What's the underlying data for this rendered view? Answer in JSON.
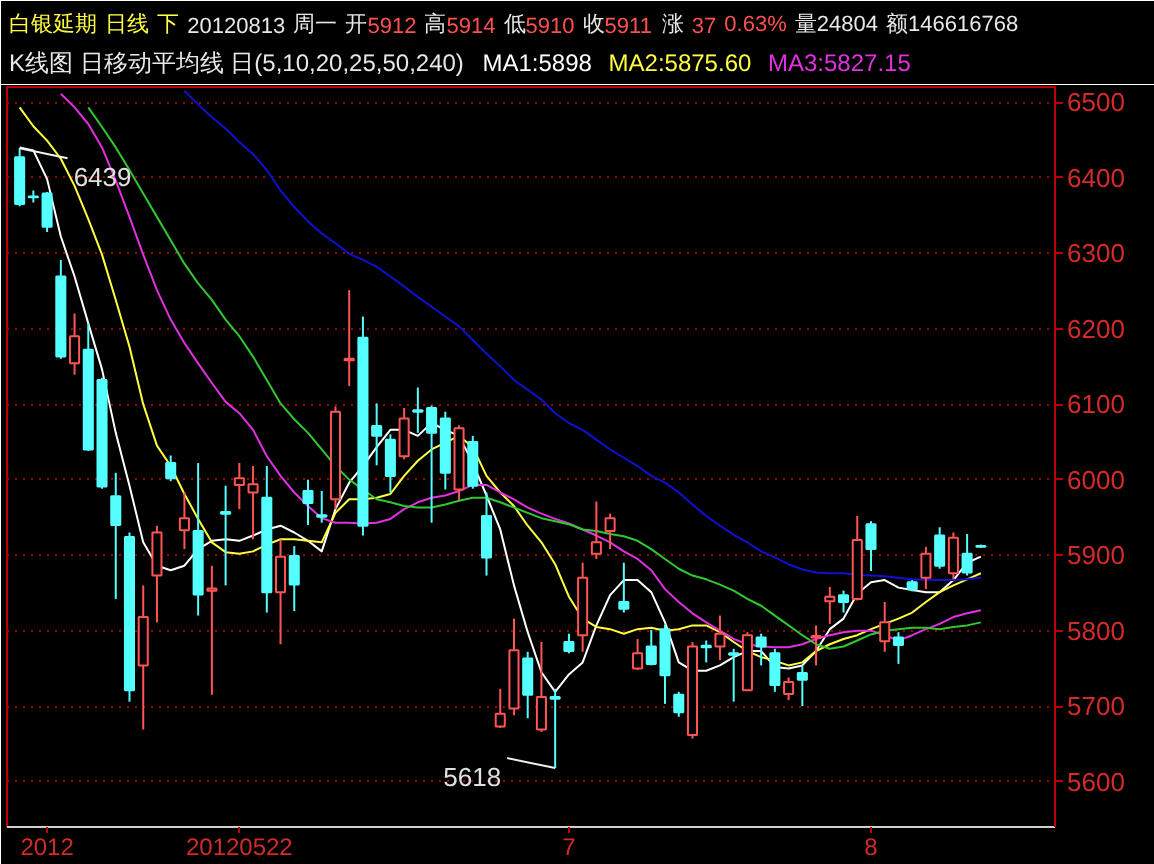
{
  "chart_data": {
    "type": "candlestick",
    "title": "白银延期 日线 下 20120813 周一 开5912 高5914 低5910 收5911 涨 37 0.63% 量24804 额146616768",
    "subtitle": "K线图 日移动平均线 日(5,10,20,25,50,240)",
    "categories": [
      null,
      null,
      "2012",
      null,
      null,
      null,
      null,
      null,
      null,
      null,
      null,
      null,
      null,
      null,
      null,
      null,
      "20120522",
      null,
      null,
      null,
      null,
      null,
      null,
      null,
      null,
      null,
      null,
      null,
      null,
      null,
      null,
      null,
      null,
      null,
      null,
      null,
      null,
      null,
      null,
      null,
      "7",
      null,
      null,
      null,
      null,
      null,
      null,
      null,
      null,
      null,
      null,
      null,
      null,
      null,
      null,
      null,
      null,
      null,
      null,
      null,
      null,
      null,
      "8",
      null,
      null,
      null,
      null,
      null,
      null,
      null,
      null
    ],
    "ohlc": [
      [
        6427,
        6439,
        6362,
        6365
      ],
      [
        6375,
        6383,
        6367,
        6374
      ],
      [
        6379,
        6381,
        6328,
        6335
      ],
      [
        6269,
        6291,
        6160,
        6163
      ],
      [
        6154,
        6220,
        6139,
        6190
      ],
      [
        6172,
        6207,
        6038,
        6040
      ],
      [
        6132,
        6135,
        5988,
        5991
      ],
      [
        5978,
        6009,
        5842,
        5940
      ],
      [
        5924,
        5930,
        5706,
        5721
      ],
      [
        5754,
        5860,
        5669,
        5818
      ],
      [
        5873,
        5939,
        5811,
        5930
      ],
      [
        6022,
        6032,
        5998,
        6002
      ],
      [
        5933,
        5983,
        5908,
        5949
      ],
      [
        5932,
        6022,
        5820,
        5848
      ],
      [
        5853,
        5886,
        5715,
        5856
      ],
      [
        5957,
        5992,
        5860,
        5955
      ],
      [
        5993,
        6022,
        5961,
        6002
      ],
      [
        5983,
        6018,
        5921,
        5994
      ],
      [
        5976,
        6018,
        5824,
        5851
      ],
      [
        5851,
        5921,
        5782,
        5898
      ],
      [
        5899,
        5912,
        5826,
        5861
      ],
      [
        5985,
        6000,
        5940,
        5969
      ],
      [
        5953,
        5985,
        5943,
        5951
      ],
      [
        5974,
        6097,
        5961,
        6090
      ],
      [
        6158,
        6251,
        6124,
        6160
      ],
      [
        6188,
        6216,
        5926,
        5939
      ],
      [
        6071,
        6101,
        6019,
        6058
      ],
      [
        6053,
        6060,
        5983,
        6005
      ],
      [
        6031,
        6095,
        6027,
        6081
      ],
      [
        6092,
        6122,
        6062,
        6090
      ],
      [
        6095,
        6098,
        5943,
        6062
      ],
      [
        6081,
        6090,
        5987,
        6009
      ],
      [
        5987,
        6072,
        5973,
        6068
      ],
      [
        6050,
        6058,
        5988,
        5992
      ],
      [
        5952,
        5983,
        5873,
        5897
      ],
      [
        5673,
        5723,
        5671,
        5690
      ],
      [
        5697,
        5816,
        5688,
        5774
      ],
      [
        5763,
        5772,
        5684,
        5715
      ],
      [
        5669,
        5785,
        5666,
        5712
      ],
      [
        5712,
        5723,
        5618,
        5710
      ],
      [
        5785,
        5796,
        5770,
        5773
      ],
      [
        5794,
        5890,
        5772,
        5870
      ],
      [
        5902,
        5971,
        5895,
        5917
      ],
      [
        5932,
        5955,
        5908,
        5949
      ],
      [
        5838,
        5890,
        5824,
        5829
      ],
      [
        5750,
        5789,
        5748,
        5770
      ],
      [
        5779,
        5801,
        5754,
        5756
      ],
      [
        5802,
        5808,
        5703,
        5741
      ],
      [
        5715,
        5719,
        5686,
        5692
      ],
      [
        5662,
        5785,
        5657,
        5779
      ],
      [
        5780,
        5787,
        5758,
        5778
      ],
      [
        5779,
        5820,
        5761,
        5796
      ],
      [
        5770,
        5776,
        5706,
        5768
      ],
      [
        5721,
        5798,
        5720,
        5794
      ],
      [
        5791,
        5796,
        5754,
        5779
      ],
      [
        5770,
        5776,
        5719,
        5728
      ],
      [
        5716,
        5738,
        5708,
        5732
      ],
      [
        5744,
        5754,
        5700,
        5735
      ],
      [
        5791,
        5807,
        5754,
        5793
      ],
      [
        5839,
        5858,
        5809,
        5845
      ],
      [
        5847,
        5853,
        5824,
        5838
      ],
      [
        5842,
        5952,
        5840,
        5920
      ],
      [
        5941,
        5945,
        5879,
        5908
      ],
      [
        5786,
        5838,
        5772,
        5811
      ],
      [
        5791,
        5798,
        5756,
        5781
      ],
      [
        5864,
        5867,
        5852,
        5855
      ],
      [
        5870,
        5911,
        5855,
        5902
      ],
      [
        5926,
        5937,
        5882,
        5886
      ],
      [
        5876,
        5930,
        5868,
        5923
      ],
      [
        5902,
        5928,
        5873,
        5877
      ],
      [
        5912,
        5914,
        5910,
        5911
      ]
    ],
    "colors": [
      "#54ffff",
      "#54ffff",
      "#54ffff",
      "#54ffff",
      "#ff5454",
      "#54ffff",
      "#54ffff",
      "#54ffff",
      "#54ffff",
      "#ff5454",
      "#ff5454",
      "#54ffff",
      "#ff5454",
      "#54ffff",
      "#ff5454",
      "#54ffff",
      "#ff5454",
      "#ff5454",
      "#54ffff",
      "#ff5454",
      "#54ffff",
      "#54ffff",
      "#54ffff",
      "#ff5454",
      "#ff5454",
      "#54ffff",
      "#54ffff",
      "#54ffff",
      "#ff5454",
      "#54ffff",
      "#54ffff",
      "#54ffff",
      "#ff5454",
      "#54ffff",
      "#54ffff",
      "#ff5454",
      "#ff5454",
      "#54ffff",
      "#ff5454",
      "#54ffff",
      "#54ffff",
      "#ff5454",
      "#ff5454",
      "#ff5454",
      "#54ffff",
      "#ff5454",
      "#54ffff",
      "#54ffff",
      "#54ffff",
      "#ff5454",
      "#54ffff",
      "#ff5454",
      "#54ffff",
      "#ff5454",
      "#54ffff",
      "#54ffff",
      "#ff5454",
      "#54ffff",
      "#ff5454",
      "#ff5454",
      "#54ffff",
      "#ff5454",
      "#54ffff",
      "#ff5454",
      "#54ffff",
      "#54ffff",
      "#ff5454",
      "#54ffff",
      "#ff5454",
      "#54ffff",
      "#54ffff"
    ],
    "series": [
      {
        "type": "line",
        "name": "MA1:5898",
        "color": "#ffffff",
        "values": [
          6440,
          6436,
          6398,
          6322,
          6269,
          6207,
          6146,
          6062,
          5992,
          5917,
          5886,
          5880,
          5886,
          5908,
          5919,
          5921,
          5919,
          5926,
          5934,
          5939,
          5930,
          5919,
          5905,
          5961,
          5996,
          6018,
          6043,
          6066,
          6066,
          6058,
          6075,
          6066,
          6058,
          6022,
          5979,
          5934,
          5860,
          5798,
          5745,
          5719,
          5742,
          5758,
          5807,
          5847,
          5867,
          5867,
          5851,
          5811,
          5758,
          5747,
          5747,
          5754,
          5765,
          5773,
          5773,
          5752,
          5750,
          5754,
          5773,
          5802,
          5816,
          5849,
          5864,
          5867,
          5857,
          5854,
          5851,
          5851,
          5867,
          5890,
          5898
        ]
      },
      {
        "type": "line",
        "name": "MA2:5875.60",
        "color": "#ffff40",
        "values": [
          6493,
          6468,
          6449,
          6425,
          6389,
          6345,
          6298,
          6238,
          6176,
          6100,
          6045,
          6018,
          5981,
          5948,
          5917,
          5904,
          5902,
          5905,
          5914,
          5921,
          5921,
          5919,
          5917,
          5956,
          5974,
          5974,
          5976,
          5981,
          6005,
          6025,
          6040,
          6049,
          6058,
          6043,
          6005,
          5983,
          5965,
          5939,
          5917,
          5888,
          5845,
          5816,
          5805,
          5802,
          5796,
          5802,
          5804,
          5800,
          5802,
          5807,
          5807,
          5798,
          5785,
          5773,
          5765,
          5760,
          5754,
          5758,
          5773,
          5782,
          5789,
          5794,
          5802,
          5809,
          5816,
          5824,
          5838,
          5851,
          5860,
          5868,
          5876
        ]
      },
      {
        "type": "line",
        "name": "MA3:5827.15",
        "color": "#e030e0",
        "values": [
          null,
          null,
          null,
          6511,
          6493,
          6471,
          6440,
          6396,
          6348,
          6298,
          6251,
          6212,
          6181,
          6154,
          6128,
          6103,
          6088,
          6066,
          6031,
          6005,
          5983,
          5965,
          5949,
          5943,
          5943,
          5942,
          5943,
          5948,
          5961,
          5970,
          5976,
          5979,
          5985,
          5993,
          5993,
          5983,
          5974,
          5963,
          5955,
          5948,
          5942,
          5934,
          5926,
          5917,
          5905,
          5895,
          5880,
          5855,
          5838,
          5823,
          5811,
          5800,
          5789,
          5782,
          5779,
          5778,
          5778,
          5782,
          5789,
          5794,
          5798,
          5800,
          5800,
          5794,
          5787,
          5794,
          5802,
          5809,
          5818,
          5823,
          5827
        ]
      },
      {
        "type": "line",
        "color": "#30c830",
        "values": [
          null,
          null,
          null,
          null,
          null,
          6493,
          6467,
          6440,
          6410,
          6379,
          6348,
          6317,
          6286,
          6260,
          6238,
          6212,
          6190,
          6163,
          6132,
          6101,
          6080,
          6062,
          6040,
          6018,
          6000,
          5987,
          5974,
          5970,
          5965,
          5963,
          5963,
          5967,
          5972,
          5976,
          5976,
          5970,
          5963,
          5956,
          5949,
          5945,
          5941,
          5934,
          5932,
          5928,
          5925,
          5919,
          5908,
          5895,
          5882,
          5873,
          5868,
          5861,
          5853,
          5842,
          5833,
          5820,
          5807,
          5794,
          5782,
          5776,
          5779,
          5787,
          5795,
          5800,
          5802,
          5804,
          5804,
          5802,
          5805,
          5807,
          5811
        ]
      },
      {
        "type": "line",
        "color": "#1010d0",
        "values": [
          null,
          null,
          null,
          null,
          null,
          null,
          null,
          null,
          null,
          null,
          null,
          null,
          6515,
          6497,
          6480,
          6465,
          6447,
          6431,
          6410,
          6383,
          6361,
          6342,
          6326,
          6313,
          6299,
          6291,
          6282,
          6269,
          6256,
          6242,
          6229,
          6216,
          6203,
          6185,
          6167,
          6150,
          6132,
          6119,
          6106,
          6088,
          6075,
          6066,
          6053,
          6040,
          6029,
          6018,
          6005,
          5996,
          5983,
          5967,
          5952,
          5939,
          5927,
          5917,
          5905,
          5897,
          5888,
          5881,
          5877,
          5876,
          5876,
          5874,
          5873,
          5872,
          5870,
          5868,
          5867,
          5867,
          5867,
          5868,
          5870
        ]
      }
    ],
    "ylim": [
      5540,
      6520
    ],
    "yticks": [
      5600,
      5700,
      5800,
      5900,
      6000,
      6100,
      6200,
      6300,
      6400,
      6500
    ],
    "grid": "y",
    "legend": "top",
    "annotations": [
      {
        "text": "6439",
        "y": 6439
      },
      "5618"
    ]
  }
}
